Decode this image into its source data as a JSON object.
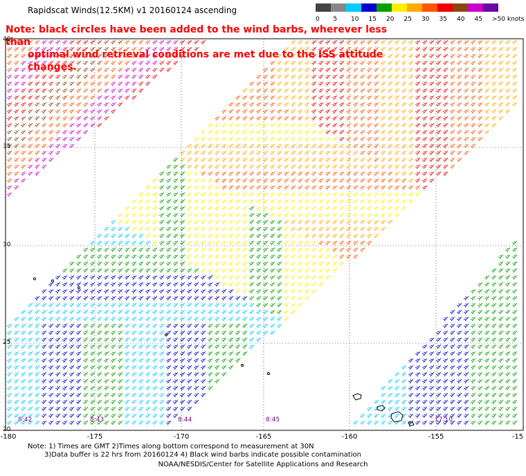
{
  "title": "Rapidscat Winds(12.5KM) v1 20160124 ascending",
  "legend": {
    "labels": [
      "0",
      "5",
      "10",
      "15",
      "20",
      "25",
      "30",
      "35",
      "40",
      "45",
      ">50 knots"
    ],
    "colors": [
      "#444444",
      "#888888",
      "#00ccff",
      "#0000cc",
      "#00a000",
      "#ffee00",
      "#ffaa00",
      "#ff5500",
      "#ee0000",
      "#8b4513",
      "#cc00cc",
      "#6a0aa0"
    ]
  },
  "note": {
    "line1": "Note: black circles have been added to the wind barbs, wherever less than",
    "line2": "optimal wind retrieval conditions are met due to the ISS attitude changes."
  },
  "axes": {
    "lat_labels": [
      "40",
      "35",
      "30",
      "25",
      "20"
    ],
    "lon_labels": [
      "-180",
      "-175",
      "-170",
      "-165",
      "-160",
      "-155",
      "-15"
    ]
  },
  "time_tags": [
    "8:42",
    "8:43",
    "8:44",
    "8:45",
    "17:10"
  ],
  "footer": {
    "line1": "Note: 1) Times are GMT 2)Times along bottom correspond to measurement at 30N",
    "line2": "3)Data buffer is 22 hrs from 20160124 4) Black wind barbs indicate possible contamination",
    "credit": "NOAA/NESDIS/Center for Satellite Applications and Research"
  }
}
